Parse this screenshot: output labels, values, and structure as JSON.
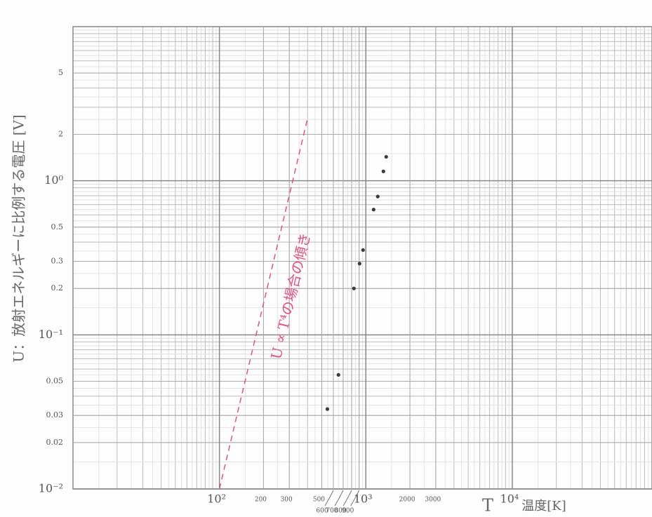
{
  "chart_data": {
    "type": "scatter",
    "x_log": true,
    "y_log": true,
    "grid": true,
    "y_label": "U：放射エネルギーに比例する電圧 [V]",
    "x_label": "T",
    "x_unit_label": "温度[K]",
    "xlim": [
      10,
      90000
    ],
    "ylim": [
      0.01,
      10
    ],
    "xticks": [
      {
        "value": 100,
        "label": "10²"
      },
      200,
      300,
      500,
      600,
      700,
      800,
      900,
      {
        "value": 1000,
        "label": "10³"
      },
      2000,
      3000,
      {
        "value": 10000,
        "label": "10⁴"
      }
    ],
    "yticks": [
      5,
      2,
      {
        "value": 1,
        "label": "10⁰"
      },
      0.5,
      0.3,
      0.2,
      {
        "value": 0.1,
        "label": "10⁻¹"
      },
      0.05,
      0.03,
      0.02,
      {
        "value": 0.01,
        "label": "10⁻²"
      }
    ],
    "series": [
      {
        "type": "scatter",
        "color": "#3a3a3a",
        "x": [
          546,
          650,
          829,
          906,
          957,
          1130,
          1206,
          1318,
          1377
        ],
        "values": [
          0.033,
          0.055,
          0.2,
          0.29,
          0.355,
          0.65,
          0.79,
          1.15,
          1.43
        ]
      },
      {
        "type": "line",
        "name": "U ∝ T⁴の場合の傾き",
        "color": "#e0527c",
        "dashed": true,
        "x": [
          100,
          401
        ],
        "values": [
          0.01,
          2.57
        ]
      }
    ]
  }
}
